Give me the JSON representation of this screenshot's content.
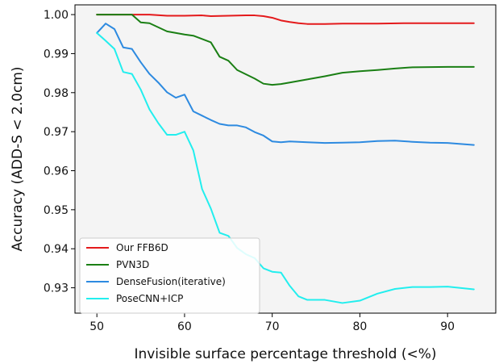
{
  "chart_data": {
    "type": "line",
    "title": "",
    "xlabel": "Invisible surface percentage threshold (<%)",
    "ylabel": "Accuracy (ADD-S < 2.0cm)",
    "xlim": [
      47.5,
      95.5
    ],
    "ylim": [
      0.9235,
      1.0025
    ],
    "xticks": [
      50,
      60,
      70,
      80,
      90
    ],
    "yticks": [
      0.93,
      0.94,
      0.95,
      0.96,
      0.97,
      0.98,
      0.99,
      1.0
    ],
    "ytick_labels": [
      "0.93",
      "0.94",
      "0.95",
      "0.96",
      "0.97",
      "0.98",
      "0.99",
      "1.00"
    ],
    "grid": false,
    "background": "#f4f4f4",
    "legend_position": "lower-left",
    "series": [
      {
        "name": "Our FFB6D",
        "color": "#e41a1c",
        "x": [
          50,
          52,
          54,
          56,
          58,
          60,
          62,
          63,
          65,
          67,
          68,
          69,
          70,
          71,
          72,
          73,
          74,
          76,
          78,
          80,
          82,
          85,
          88,
          90,
          93
        ],
        "y": [
          1.0,
          1.0,
          1.0,
          1.0,
          0.9997,
          0.9997,
          0.9998,
          0.9996,
          0.9997,
          0.9998,
          0.9998,
          0.9996,
          0.9992,
          0.9985,
          0.9981,
          0.9978,
          0.9976,
          0.9976,
          0.9977,
          0.9977,
          0.9977,
          0.9978,
          0.9978,
          0.9978,
          0.9978
        ]
      },
      {
        "name": "PVN3D",
        "color": "#1a7f14",
        "x": [
          50,
          52,
          54,
          55,
          56,
          58,
          60,
          61,
          63,
          64,
          65,
          66,
          68,
          69,
          70,
          71,
          72,
          74,
          76,
          78,
          80,
          82,
          84,
          86,
          90,
          93
        ],
        "y": [
          1.0,
          1.0,
          1.0,
          0.998,
          0.9978,
          0.9957,
          0.9949,
          0.9946,
          0.9929,
          0.9892,
          0.9882,
          0.9858,
          0.9836,
          0.9823,
          0.982,
          0.9822,
          0.9826,
          0.9834,
          0.9842,
          0.9851,
          0.9855,
          0.9858,
          0.9862,
          0.9865,
          0.9866,
          0.9866
        ]
      },
      {
        "name": "DenseFusion(iterative)",
        "color": "#2d8ae0",
        "x": [
          50,
          51,
          52,
          53,
          54,
          55,
          56,
          57,
          58,
          59,
          60,
          61,
          62,
          63,
          64,
          65,
          66,
          67,
          68,
          69,
          70,
          71,
          72,
          74,
          76,
          78,
          80,
          82,
          84,
          86,
          88,
          90,
          93
        ],
        "y": [
          0.9953,
          0.9977,
          0.9963,
          0.9916,
          0.9912,
          0.9878,
          0.9848,
          0.9826,
          0.9801,
          0.9787,
          0.9795,
          0.9752,
          0.9741,
          0.973,
          0.972,
          0.9716,
          0.9716,
          0.9711,
          0.9699,
          0.969,
          0.9675,
          0.9673,
          0.9675,
          0.9673,
          0.9671,
          0.9672,
          0.9673,
          0.9676,
          0.9677,
          0.9674,
          0.9672,
          0.9671,
          0.9666
        ]
      },
      {
        "name": "PoseCNN+ICP",
        "color": "#22eeee",
        "x": [
          50,
          51,
          52,
          53,
          54,
          55,
          56,
          57,
          58,
          59,
          60,
          61,
          62,
          63,
          64,
          65,
          66,
          67,
          68,
          69,
          70,
          71,
          72,
          73,
          74,
          75,
          76,
          78,
          80,
          82,
          84,
          86,
          88,
          90,
          93
        ],
        "y": [
          0.9953,
          0.9933,
          0.9912,
          0.9853,
          0.9848,
          0.9808,
          0.9757,
          0.9722,
          0.9692,
          0.9692,
          0.97,
          0.9652,
          0.9553,
          0.9503,
          0.9441,
          0.9433,
          0.9402,
          0.9386,
          0.9376,
          0.935,
          0.9341,
          0.9339,
          0.9305,
          0.9278,
          0.9269,
          0.9269,
          0.9269,
          0.9261,
          0.9267,
          0.9285,
          0.9297,
          0.9302,
          0.9302,
          0.9303,
          0.9296
        ]
      }
    ]
  }
}
